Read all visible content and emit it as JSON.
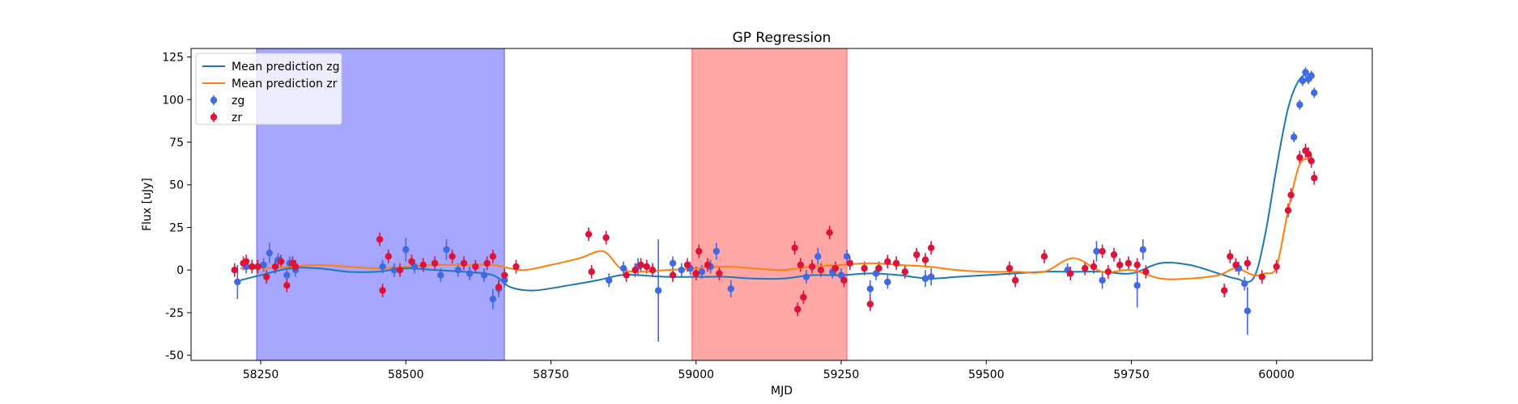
{
  "chart_data": {
    "type": "scatter",
    "title": "GP Regression",
    "xlabel": "MJD",
    "ylabel": "Flux [uJy]",
    "xlim": [
      58130,
      60165
    ],
    "ylim": [
      -53,
      130
    ],
    "xticks": [
      58250,
      58500,
      58750,
      59000,
      59250,
      59500,
      59750,
      60000
    ],
    "yticks": [
      -50,
      -25,
      0,
      25,
      50,
      75,
      100,
      125
    ],
    "grid": false,
    "legend_position": "upper-left",
    "colors": {
      "zg": "#4169e1",
      "zr": "#dc143c",
      "mean_zg": "#1f77b4",
      "mean_zr": "#ff7f0e"
    },
    "shaded_regions": [
      {
        "x0": 58243,
        "x1": 58670,
        "color": "#0000ff",
        "alpha": 0.35
      },
      {
        "x0": 58993,
        "x1": 59260,
        "color": "#ff0000",
        "alpha": 0.35
      }
    ],
    "legend": [
      "Mean prediction zg",
      "Mean prediction zr",
      "zg",
      "zr"
    ],
    "series": [
      {
        "name": "Mean prediction zg",
        "kind": "line",
        "color": "#1f77b4",
        "x": [
          58215,
          58250,
          58300,
          58350,
          58400,
          58450,
          58500,
          58550,
          58600,
          58650,
          58680,
          58720,
          58780,
          58830,
          58870,
          58900,
          58950,
          59000,
          59050,
          59100,
          59150,
          59200,
          59250,
          59300,
          59350,
          59400,
          59450,
          59500,
          59550,
          59600,
          59650,
          59700,
          59750,
          59800,
          59850,
          59900,
          59930,
          59960,
          59980,
          60000,
          60020,
          60040,
          60060
        ],
        "y": [
          -6,
          -3,
          1,
          1,
          -1,
          -1,
          1,
          0,
          -1,
          -3,
          -10,
          -12,
          -9,
          -6,
          -3,
          -3,
          -4,
          -4,
          -4,
          -5,
          -5,
          -3,
          -3,
          -2,
          -3,
          -5,
          -4,
          -3,
          -2,
          -1,
          -1,
          -1,
          -2,
          4,
          3,
          -2,
          -5,
          -5,
          20,
          60,
          95,
          112,
          115
        ]
      },
      {
        "name": "Mean prediction zr",
        "kind": "line",
        "color": "#ff7f0e",
        "x": [
          58215,
          58250,
          58300,
          58350,
          58400,
          58450,
          58500,
          58550,
          58600,
          58650,
          58700,
          58750,
          58800,
          58840,
          58870,
          58900,
          58950,
          59000,
          59050,
          59100,
          59150,
          59200,
          59250,
          59300,
          59350,
          59400,
          59450,
          59500,
          59550,
          59600,
          59650,
          59700,
          59750,
          59800,
          59850,
          59900,
          59930,
          59960,
          59980,
          60000,
          60020,
          60040,
          60060
        ],
        "y": [
          1,
          1,
          2,
          3,
          2,
          1,
          2,
          3,
          3,
          3,
          0,
          3,
          7,
          11,
          1,
          -1,
          0,
          1,
          2,
          1,
          0,
          2,
          3,
          4,
          3,
          2,
          0,
          -1,
          -1,
          -1,
          7,
          -1,
          0,
          -5,
          -5,
          -3,
          1,
          -3,
          -2,
          2,
          35,
          62,
          65
        ]
      },
      {
        "name": "zg",
        "kind": "errorbar",
        "color": "#4169e1",
        "x": [
          58210,
          58225,
          58255,
          58265,
          58280,
          58295,
          58300,
          58310,
          58460,
          58480,
          58500,
          58515,
          58560,
          58570,
          58590,
          58610,
          58635,
          58650,
          58660,
          58670,
          58850,
          58875,
          58900,
          58935,
          58960,
          58975,
          58990,
          59010,
          59025,
          59035,
          59060,
          59190,
          59210,
          59235,
          59250,
          59260,
          59300,
          59310,
          59330,
          59395,
          59405,
          59640,
          59690,
          59700,
          59760,
          59770,
          59935,
          59945,
          59950,
          60030,
          60040,
          60045,
          60050,
          60055,
          60060,
          60065
        ],
        "y": [
          -7,
          2,
          3,
          10,
          6,
          -3,
          4,
          0,
          2,
          0,
          12,
          2,
          -3,
          12,
          0,
          -2,
          -3,
          -17,
          -11,
          -6,
          -6,
          1,
          2,
          -12,
          4,
          0,
          1,
          -1,
          2,
          11,
          -11,
          -4,
          8,
          -1,
          -3,
          8,
          -11,
          -2,
          -7,
          -5,
          -4,
          0,
          11,
          -6,
          -9,
          12,
          1,
          -8,
          -24,
          78,
          97,
          111,
          116,
          112,
          114,
          104
        ],
        "err": [
          10,
          4,
          4,
          6,
          4,
          4,
          4,
          4,
          4,
          4,
          7,
          4,
          4,
          6,
          4,
          4,
          4,
          6,
          5,
          4,
          4,
          4,
          5,
          30,
          4,
          4,
          4,
          4,
          4,
          5,
          5,
          4,
          5,
          4,
          4,
          4,
          5,
          4,
          4,
          5,
          5,
          4,
          6,
          5,
          13,
          6,
          4,
          4,
          14,
          3,
          3,
          3,
          3,
          3,
          3,
          3
        ]
      },
      {
        "name": "zr",
        "kind": "errorbar",
        "color": "#dc143c",
        "x": [
          58205,
          58220,
          58225,
          58235,
          58245,
          58260,
          58275,
          58285,
          58295,
          58305,
          58310,
          58455,
          58460,
          58470,
          58490,
          58510,
          58530,
          58550,
          58580,
          58600,
          58620,
          58640,
          58650,
          58660,
          58670,
          58690,
          58815,
          58820,
          58845,
          58880,
          58895,
          58905,
          58915,
          58925,
          58960,
          58985,
          59000,
          59005,
          59020,
          59040,
          59170,
          59175,
          59180,
          59185,
          59200,
          59215,
          59230,
          59240,
          59255,
          59265,
          59290,
          59300,
          59315,
          59330,
          59345,
          59360,
          59380,
          59395,
          59405,
          59540,
          59550,
          59600,
          59645,
          59670,
          59685,
          59700,
          59710,
          59720,
          59730,
          59745,
          59760,
          59775,
          59910,
          59920,
          59930,
          59950,
          59975,
          60000,
          60020,
          60025,
          60040,
          60050,
          60055,
          60060,
          60065
        ],
        "y": [
          0,
          4,
          5,
          2,
          2,
          -4,
          2,
          5,
          -9,
          4,
          2,
          18,
          -12,
          8,
          0,
          5,
          3,
          4,
          8,
          4,
          2,
          4,
          8,
          -10,
          -3,
          2,
          21,
          -1,
          19,
          -3,
          0,
          3,
          2,
          0,
          -3,
          3,
          -2,
          11,
          3,
          -2,
          13,
          -23,
          3,
          -16,
          2,
          0,
          22,
          1,
          -6,
          4,
          1,
          -20,
          1,
          5,
          4,
          -1,
          9,
          6,
          13,
          1,
          -6,
          8,
          -2,
          1,
          2,
          11,
          -1,
          9,
          3,
          4,
          3,
          -1,
          -12,
          8,
          3,
          4,
          -4,
          2,
          35,
          44,
          66,
          70,
          68,
          64,
          54
        ]
      }
    ]
  }
}
